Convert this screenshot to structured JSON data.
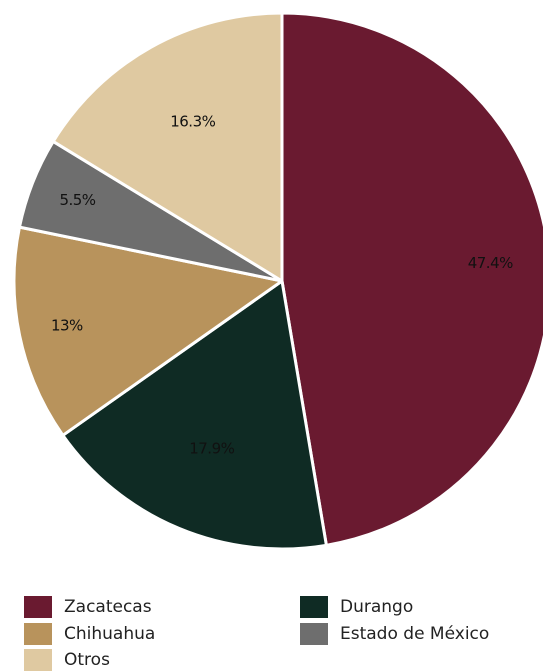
{
  "chart_data": {
    "type": "pie",
    "title": "",
    "categories": [
      "Zacatecas",
      "Durango",
      "Chihuahua",
      "Estado de México",
      "Otros"
    ],
    "values": [
      47.4,
      17.9,
      13,
      5.5,
      16.3
    ],
    "value_labels": [
      "47.4%",
      "17.9%",
      "13%",
      "5.5%",
      "16.3%"
    ],
    "colors": [
      "#6a1a30",
      "#0f2b24",
      "#b8935c",
      "#6e6e6e",
      "#dfc9a1"
    ],
    "start_angle_deg": 0,
    "direction": "clockwise",
    "legend": {
      "placement": "bottom",
      "entries": [
        "Zacatecas",
        "Durango",
        "Chihuahua",
        "Estado de México",
        "Otros"
      ]
    }
  }
}
